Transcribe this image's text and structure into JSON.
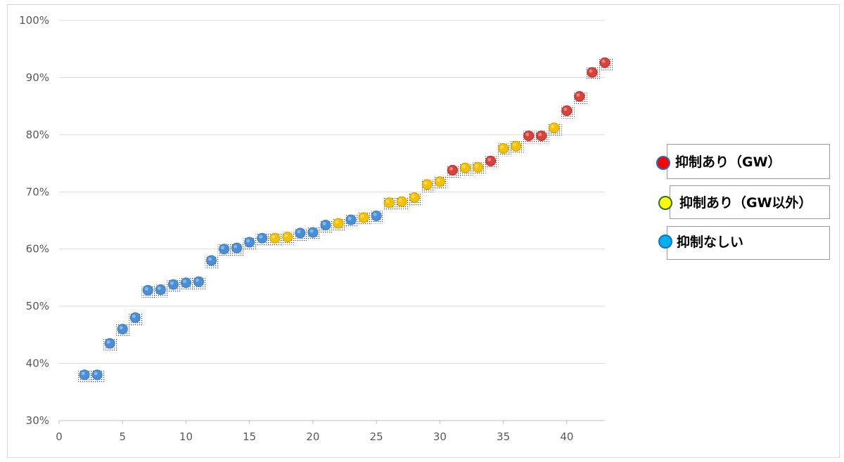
{
  "chart_data": {
    "type": "scatter",
    "xlim": [
      0,
      43
    ],
    "ylim": [
      30,
      100
    ],
    "x_ticks": [
      0,
      5,
      10,
      15,
      20,
      25,
      30,
      35,
      40
    ],
    "y_ticks": [
      30,
      40,
      50,
      60,
      70,
      80,
      90,
      100
    ],
    "y_tick_labels": [
      "30%",
      "40%",
      "50%",
      "60%",
      "70%",
      "80%",
      "90%",
      "100%"
    ],
    "grid": "horizontal",
    "legend_position": "right",
    "series": [
      {
        "name": "抑制あり（GW）",
        "color": "#d9413a",
        "x": [
          31,
          34,
          37,
          38,
          40,
          41,
          42,
          43
        ],
        "y": [
          73.8,
          75.4,
          79.8,
          79.8,
          84.2,
          86.7,
          90.9,
          92.6
        ]
      },
      {
        "name": "抑制あり（GW以外）",
        "color": "#f2c200",
        "x": [
          17,
          18,
          22,
          24,
          26,
          27,
          28,
          29,
          30,
          32,
          33,
          35,
          36,
          39
        ],
        "y": [
          61.9,
          62.1,
          64.5,
          65.5,
          68.1,
          68.3,
          69.0,
          71.3,
          71.8,
          74.2,
          74.3,
          77.6,
          78.0,
          81.2
        ]
      },
      {
        "name": "抑制なしい",
        "color": "#4a8fd6",
        "x": [
          2,
          3,
          4,
          5,
          6,
          7,
          8,
          9,
          10,
          11,
          12,
          13,
          14,
          15,
          16,
          19,
          20,
          21,
          23,
          25
        ],
        "y": [
          38.0,
          38.0,
          43.5,
          46.0,
          48.0,
          52.8,
          52.9,
          53.8,
          54.1,
          54.3,
          58.0,
          60.0,
          60.2,
          61.2,
          61.9,
          62.8,
          62.9,
          64.2,
          65.1,
          65.8
        ]
      }
    ]
  },
  "legend": {
    "items": [
      {
        "label": "抑制あり（GW）",
        "marker_color": "#ff0000",
        "marker_border": "#1f6fbf"
      },
      {
        "label": "抑制あり（GW以外）",
        "marker_color": "#ffff00",
        "marker_border": "#2e6e2e"
      },
      {
        "label": "抑制なしい",
        "marker_color": "#00b0f0",
        "marker_border": "#1f6fbf"
      }
    ]
  }
}
